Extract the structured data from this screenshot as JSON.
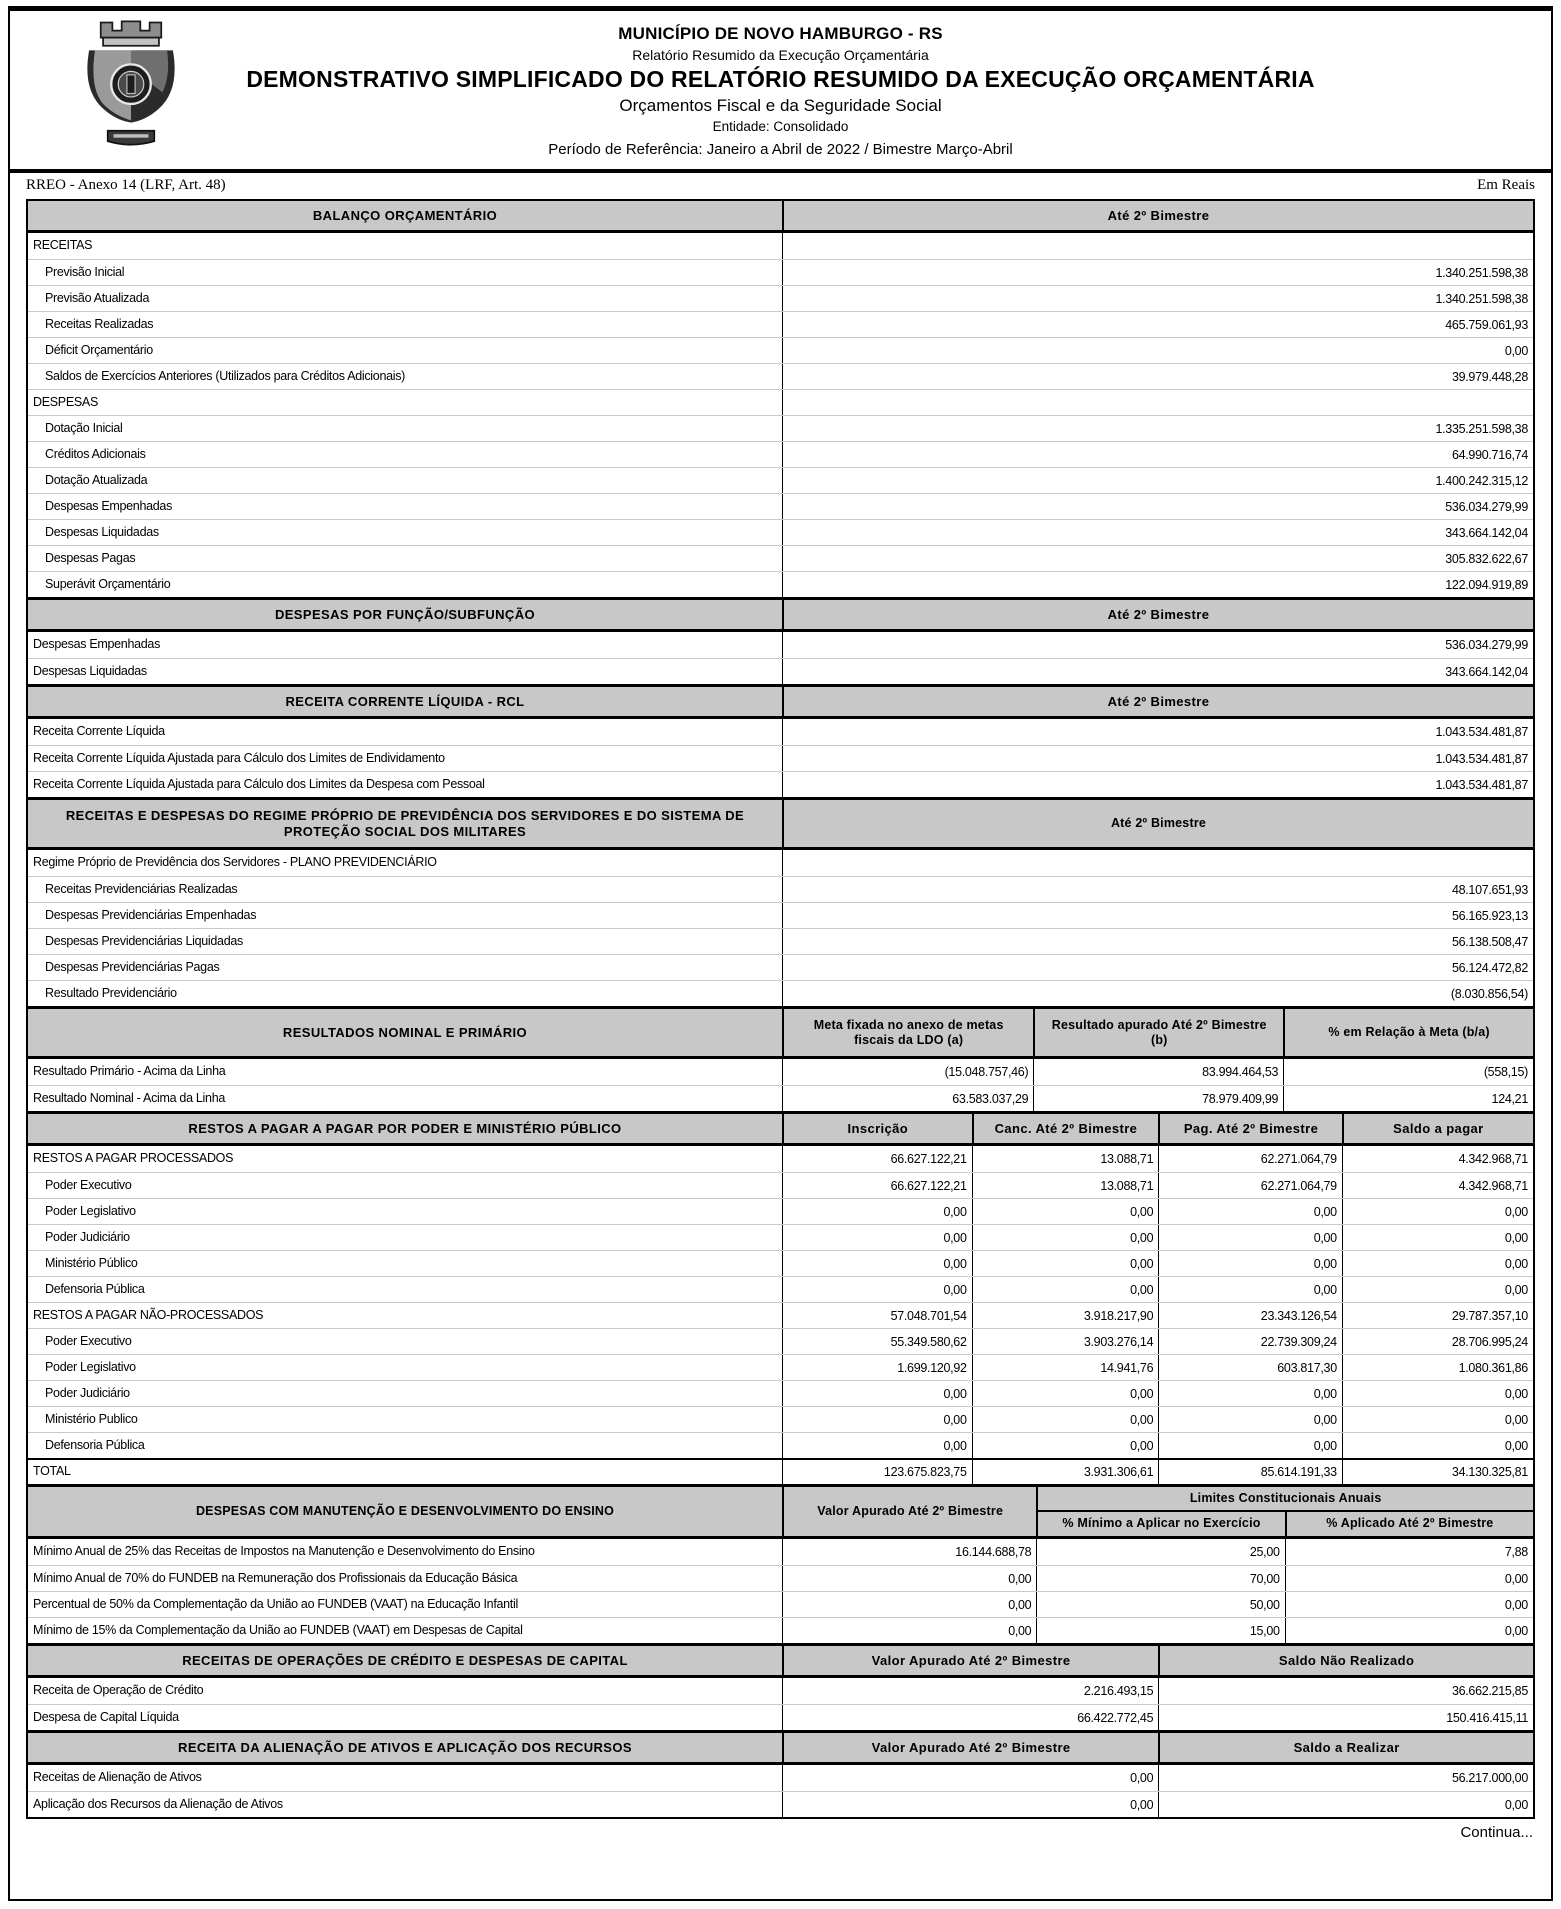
{
  "colors": {
    "section_header_bg": "#c8c8c8",
    "border": "#000000",
    "row_separator": "#c9c9c9"
  },
  "header": {
    "logo_name": "novo-hamburgo-coat-of-arms",
    "municipality": "MUNICÍPIO DE NOVO HAMBURGO - RS",
    "report": "Relatório Resumido da Execução Orçamentária",
    "title": "DEMONSTRATIVO SIMPLIFICADO DO RELATÓRIO RESUMIDO DA EXECUÇÃO ORÇAMENTÁRIA",
    "subtitle": "Orçamentos Fiscal e da Seguridade Social",
    "entity": "Entidade: Consolidado",
    "period": "Período de Referência: Janeiro a Abril de 2022 / Bimestre Março-Abril"
  },
  "meta": {
    "left": "RREO - Anexo 14 (LRF, Art. 48)",
    "right": "Em Reais"
  },
  "footer": {
    "continues": "Continua..."
  },
  "table": {
    "sections": [
      {
        "title": "BALANÇO ORÇAMENTÁRIO",
        "columns": [
          "50.1%",
          "49.9%"
        ],
        "value_headers": [
          "Até 2º Bimestre"
        ],
        "rows": [
          {
            "label": "RECEITAS",
            "indent": 0,
            "values": [
              ""
            ]
          },
          {
            "label": "Previsão Inicial",
            "indent": 1,
            "values": [
              "1.340.251.598,38"
            ]
          },
          {
            "label": "Previsão Atualizada",
            "indent": 1,
            "values": [
              "1.340.251.598,38"
            ]
          },
          {
            "label": "Receitas Realizadas",
            "indent": 1,
            "values": [
              "465.759.061,93"
            ]
          },
          {
            "label": "Déficit Orçamentário",
            "indent": 1,
            "values": [
              "0,00"
            ]
          },
          {
            "label": "Saldos de Exercícios Anteriores (Utilizados para Créditos Adicionais)",
            "indent": 1,
            "values": [
              "39.979.448,28"
            ]
          },
          {
            "label": "DESPESAS",
            "indent": 0,
            "values": [
              ""
            ]
          },
          {
            "label": "Dotação Inicial",
            "indent": 1,
            "values": [
              "1.335.251.598,38"
            ]
          },
          {
            "label": "Créditos Adicionais",
            "indent": 1,
            "values": [
              "64.990.716,74"
            ]
          },
          {
            "label": "Dotação Atualizada",
            "indent": 1,
            "values": [
              "1.400.242.315,12"
            ]
          },
          {
            "label": "Despesas Empenhadas",
            "indent": 1,
            "values": [
              "536.034.279,99"
            ]
          },
          {
            "label": "Despesas Liquidadas",
            "indent": 1,
            "values": [
              "343.664.142,04"
            ]
          },
          {
            "label": "Despesas Pagas",
            "indent": 1,
            "values": [
              "305.832.622,67"
            ]
          },
          {
            "label": "Superávit Orçamentário",
            "indent": 1,
            "values": [
              "122.094.919,89"
            ]
          }
        ]
      },
      {
        "title": "DESPESAS POR FUNÇÃO/SUBFUNÇÃO",
        "columns": [
          "50.1%",
          "49.9%"
        ],
        "value_headers": [
          "Até 2º Bimestre"
        ],
        "rows": [
          {
            "label": "Despesas Empenhadas",
            "indent": 0,
            "values": [
              "536.034.279,99"
            ]
          },
          {
            "label": "Despesas Liquidadas",
            "indent": 0,
            "values": [
              "343.664.142,04"
            ]
          }
        ]
      },
      {
        "title": "RECEITA CORRENTE LÍQUIDA - RCL",
        "columns": [
          "50.1%",
          "49.9%"
        ],
        "value_headers": [
          "Até 2º Bimestre"
        ],
        "rows": [
          {
            "label": "Receita Corrente Líquida",
            "indent": 0,
            "values": [
              "1.043.534.481,87"
            ]
          },
          {
            "label": "Receita Corrente Líquida Ajustada para Cálculo dos Limites de Endividamento",
            "indent": 0,
            "values": [
              "1.043.534.481,87"
            ]
          },
          {
            "label": "Receita Corrente Líquida Ajustada para Cálculo dos Limites da Despesa com Pessoal",
            "indent": 0,
            "values": [
              "1.043.534.481,87"
            ]
          }
        ]
      },
      {
        "title": "RECEITAS E DESPESAS DO REGIME PRÓPRIO DE PREVIDÊNCIA DOS SERVIDORES E DO SISTEMA DE PROTEÇÃO SOCIAL DOS MILITARES",
        "columns": [
          "50.1%",
          "49.9%"
        ],
        "value_headers": [
          "Até 2º Bimestre"
        ],
        "header_style": "tall",
        "rows": [
          {
            "label": "Regime Próprio de Previdência dos Servidores - PLANO PREVIDENCIÁRIO",
            "indent": 0,
            "values": [
              ""
            ]
          },
          {
            "label": "Receitas Previdenciárias Realizadas",
            "indent": 1,
            "values": [
              "48.107.651,93"
            ]
          },
          {
            "label": "Despesas Previdenciárias Empenhadas",
            "indent": 1,
            "values": [
              "56.165.923,13"
            ]
          },
          {
            "label": "Despesas Previdenciárias Liquidadas",
            "indent": 1,
            "values": [
              "56.138.508,47"
            ]
          },
          {
            "label": "Despesas Previdenciárias Pagas",
            "indent": 1,
            "values": [
              "56.124.472,82"
            ]
          },
          {
            "label": "Resultado Previdenciário",
            "indent": 1,
            "values": [
              "(8.030.856,54)"
            ]
          }
        ]
      },
      {
        "title": "RESULTADOS NOMINAL E PRIMÁRIO",
        "columns": [
          "50.1%",
          "16.7%",
          "16.6%",
          "16.6%"
        ],
        "value_headers": [
          "Meta fixada no anexo de metas fiscais da LDO (a)",
          "Resultado apurado Até 2º Bimestre (b)",
          "% em Relação à Meta (b/a)"
        ],
        "header_style": "tall",
        "rows": [
          {
            "label": "Resultado Primário - Acima da Linha",
            "indent": 0,
            "values": [
              "(15.048.757,46)",
              "83.994.464,53",
              "(558,15)"
            ]
          },
          {
            "label": "Resultado Nominal - Acima da Linha",
            "indent": 0,
            "values": [
              "63.583.037,29",
              "78.979.409,99",
              "124,21"
            ]
          }
        ]
      },
      {
        "title": "RESTOS A PAGAR A PAGAR POR PODER E MINISTÉRIO PÚBLICO",
        "columns": [
          "50.1%",
          "12.6%",
          "12.4%",
          "12.2%",
          "12.7%"
        ],
        "value_headers": [
          "Inscrição",
          "Canc. Até 2º Bimestre",
          "Pag. Até 2º Bimestre",
          "Saldo a pagar"
        ],
        "rows": [
          {
            "label": "RESTOS A PAGAR PROCESSADOS",
            "indent": 0,
            "values": [
              "66.627.122,21",
              "13.088,71",
              "62.271.064,79",
              "4.342.968,71"
            ]
          },
          {
            "label": "Poder Executivo",
            "indent": 1,
            "values": [
              "66.627.122,21",
              "13.088,71",
              "62.271.064,79",
              "4.342.968,71"
            ]
          },
          {
            "label": "Poder Legislativo",
            "indent": 1,
            "values": [
              "0,00",
              "0,00",
              "0,00",
              "0,00"
            ]
          },
          {
            "label": "Poder Judiciário",
            "indent": 1,
            "values": [
              "0,00",
              "0,00",
              "0,00",
              "0,00"
            ]
          },
          {
            "label": "Ministério Público",
            "indent": 1,
            "values": [
              "0,00",
              "0,00",
              "0,00",
              "0,00"
            ]
          },
          {
            "label": "Defensoria Pública",
            "indent": 1,
            "values": [
              "0,00",
              "0,00",
              "0,00",
              "0,00"
            ]
          },
          {
            "label": "RESTOS A PAGAR NÃO-PROCESSADOS",
            "indent": 0,
            "values": [
              "57.048.701,54",
              "3.918.217,90",
              "23.343.126,54",
              "29.787.357,10"
            ]
          },
          {
            "label": "Poder Executivo",
            "indent": 1,
            "values": [
              "55.349.580,62",
              "3.903.276,14",
              "22.739.309,24",
              "28.706.995,24"
            ]
          },
          {
            "label": "Poder Legislativo",
            "indent": 1,
            "values": [
              "1.699.120,92",
              "14.941,76",
              "603.817,30",
              "1.080.361,86"
            ]
          },
          {
            "label": "Poder Judiciário",
            "indent": 1,
            "values": [
              "0,00",
              "0,00",
              "0,00",
              "0,00"
            ]
          },
          {
            "label": "Ministério Publico",
            "indent": 1,
            "values": [
              "0,00",
              "0,00",
              "0,00",
              "0,00"
            ]
          },
          {
            "label": "Defensoria Pública",
            "indent": 1,
            "values": [
              "0,00",
              "0,00",
              "0,00",
              "0,00"
            ]
          },
          {
            "label": "TOTAL",
            "indent": 0,
            "heavy_top": true,
            "values": [
              "123.675.823,75",
              "3.931.306,61",
              "85.614.191,33",
              "34.130.325,81"
            ]
          }
        ]
      },
      {
        "title": "DESPESAS COM MANUTENÇÃO E DESENVOLVIMENTO DO ENSINO",
        "columns": [
          "50.1%",
          "16.9%",
          "16.5%",
          "16.5%"
        ],
        "value_headers": [
          "Valor Apurado Até 2º Bimestre"
        ],
        "group": {
          "label": "Limites Constitucionais Anuais",
          "sub": [
            "% Mínimo a Aplicar no Exercício",
            "% Aplicado Até 2º Bimestre"
          ]
        },
        "rows": [
          {
            "label": "Mínimo Anual de 25% das Receitas de Impostos na Manutenção e Desenvolvimento do Ensino",
            "indent": 0,
            "values": [
              "16.144.688,78",
              "25,00",
              "7,88"
            ]
          },
          {
            "label": "Mínimo Anual de 70% do FUNDEB na Remuneração dos Profissionais da Educação Básica",
            "indent": 0,
            "values": [
              "0,00",
              "70,00",
              "0,00"
            ]
          },
          {
            "label": "Percentual de 50% da Complementação da União ao FUNDEB (VAAT) na Educação Infantil",
            "indent": 0,
            "values": [
              "0,00",
              "50,00",
              "0,00"
            ]
          },
          {
            "label": "Mínimo de 15% da Complementação da União ao FUNDEB (VAAT) em Despesas de Capital",
            "indent": 0,
            "values": [
              "0,00",
              "15,00",
              "0,00"
            ]
          }
        ]
      },
      {
        "title": "RECEITAS DE OPERAÇÕES DE CRÉDITO E DESPESAS DE CAPITAL",
        "columns": [
          "50.1%",
          "25%",
          "24.9%"
        ],
        "value_headers": [
          "Valor Apurado Até 2º Bimestre",
          "Saldo Não Realizado"
        ],
        "rows": [
          {
            "label": "Receita de Operação de Crédito",
            "indent": 0,
            "values": [
              "2.216.493,15",
              "36.662.215,85"
            ]
          },
          {
            "label": "Despesa de Capital Líquida",
            "indent": 0,
            "values": [
              "66.422.772,45",
              "150.416.415,11"
            ]
          }
        ]
      },
      {
        "title": "RECEITA DA ALIENAÇÃO DE ATIVOS E APLICAÇÃO DOS RECURSOS",
        "columns": [
          "50.1%",
          "25%",
          "24.9%"
        ],
        "value_headers": [
          "Valor Apurado Até 2º Bimestre",
          "Saldo a Realizar"
        ],
        "rows": [
          {
            "label": "Receitas de Alienação de Ativos",
            "indent": 0,
            "values": [
              "0,00",
              "56.217.000,00"
            ]
          },
          {
            "label": "Aplicação dos Recursos da Alienação de Ativos",
            "indent": 0,
            "values": [
              "0,00",
              "0,00"
            ]
          }
        ]
      }
    ]
  }
}
